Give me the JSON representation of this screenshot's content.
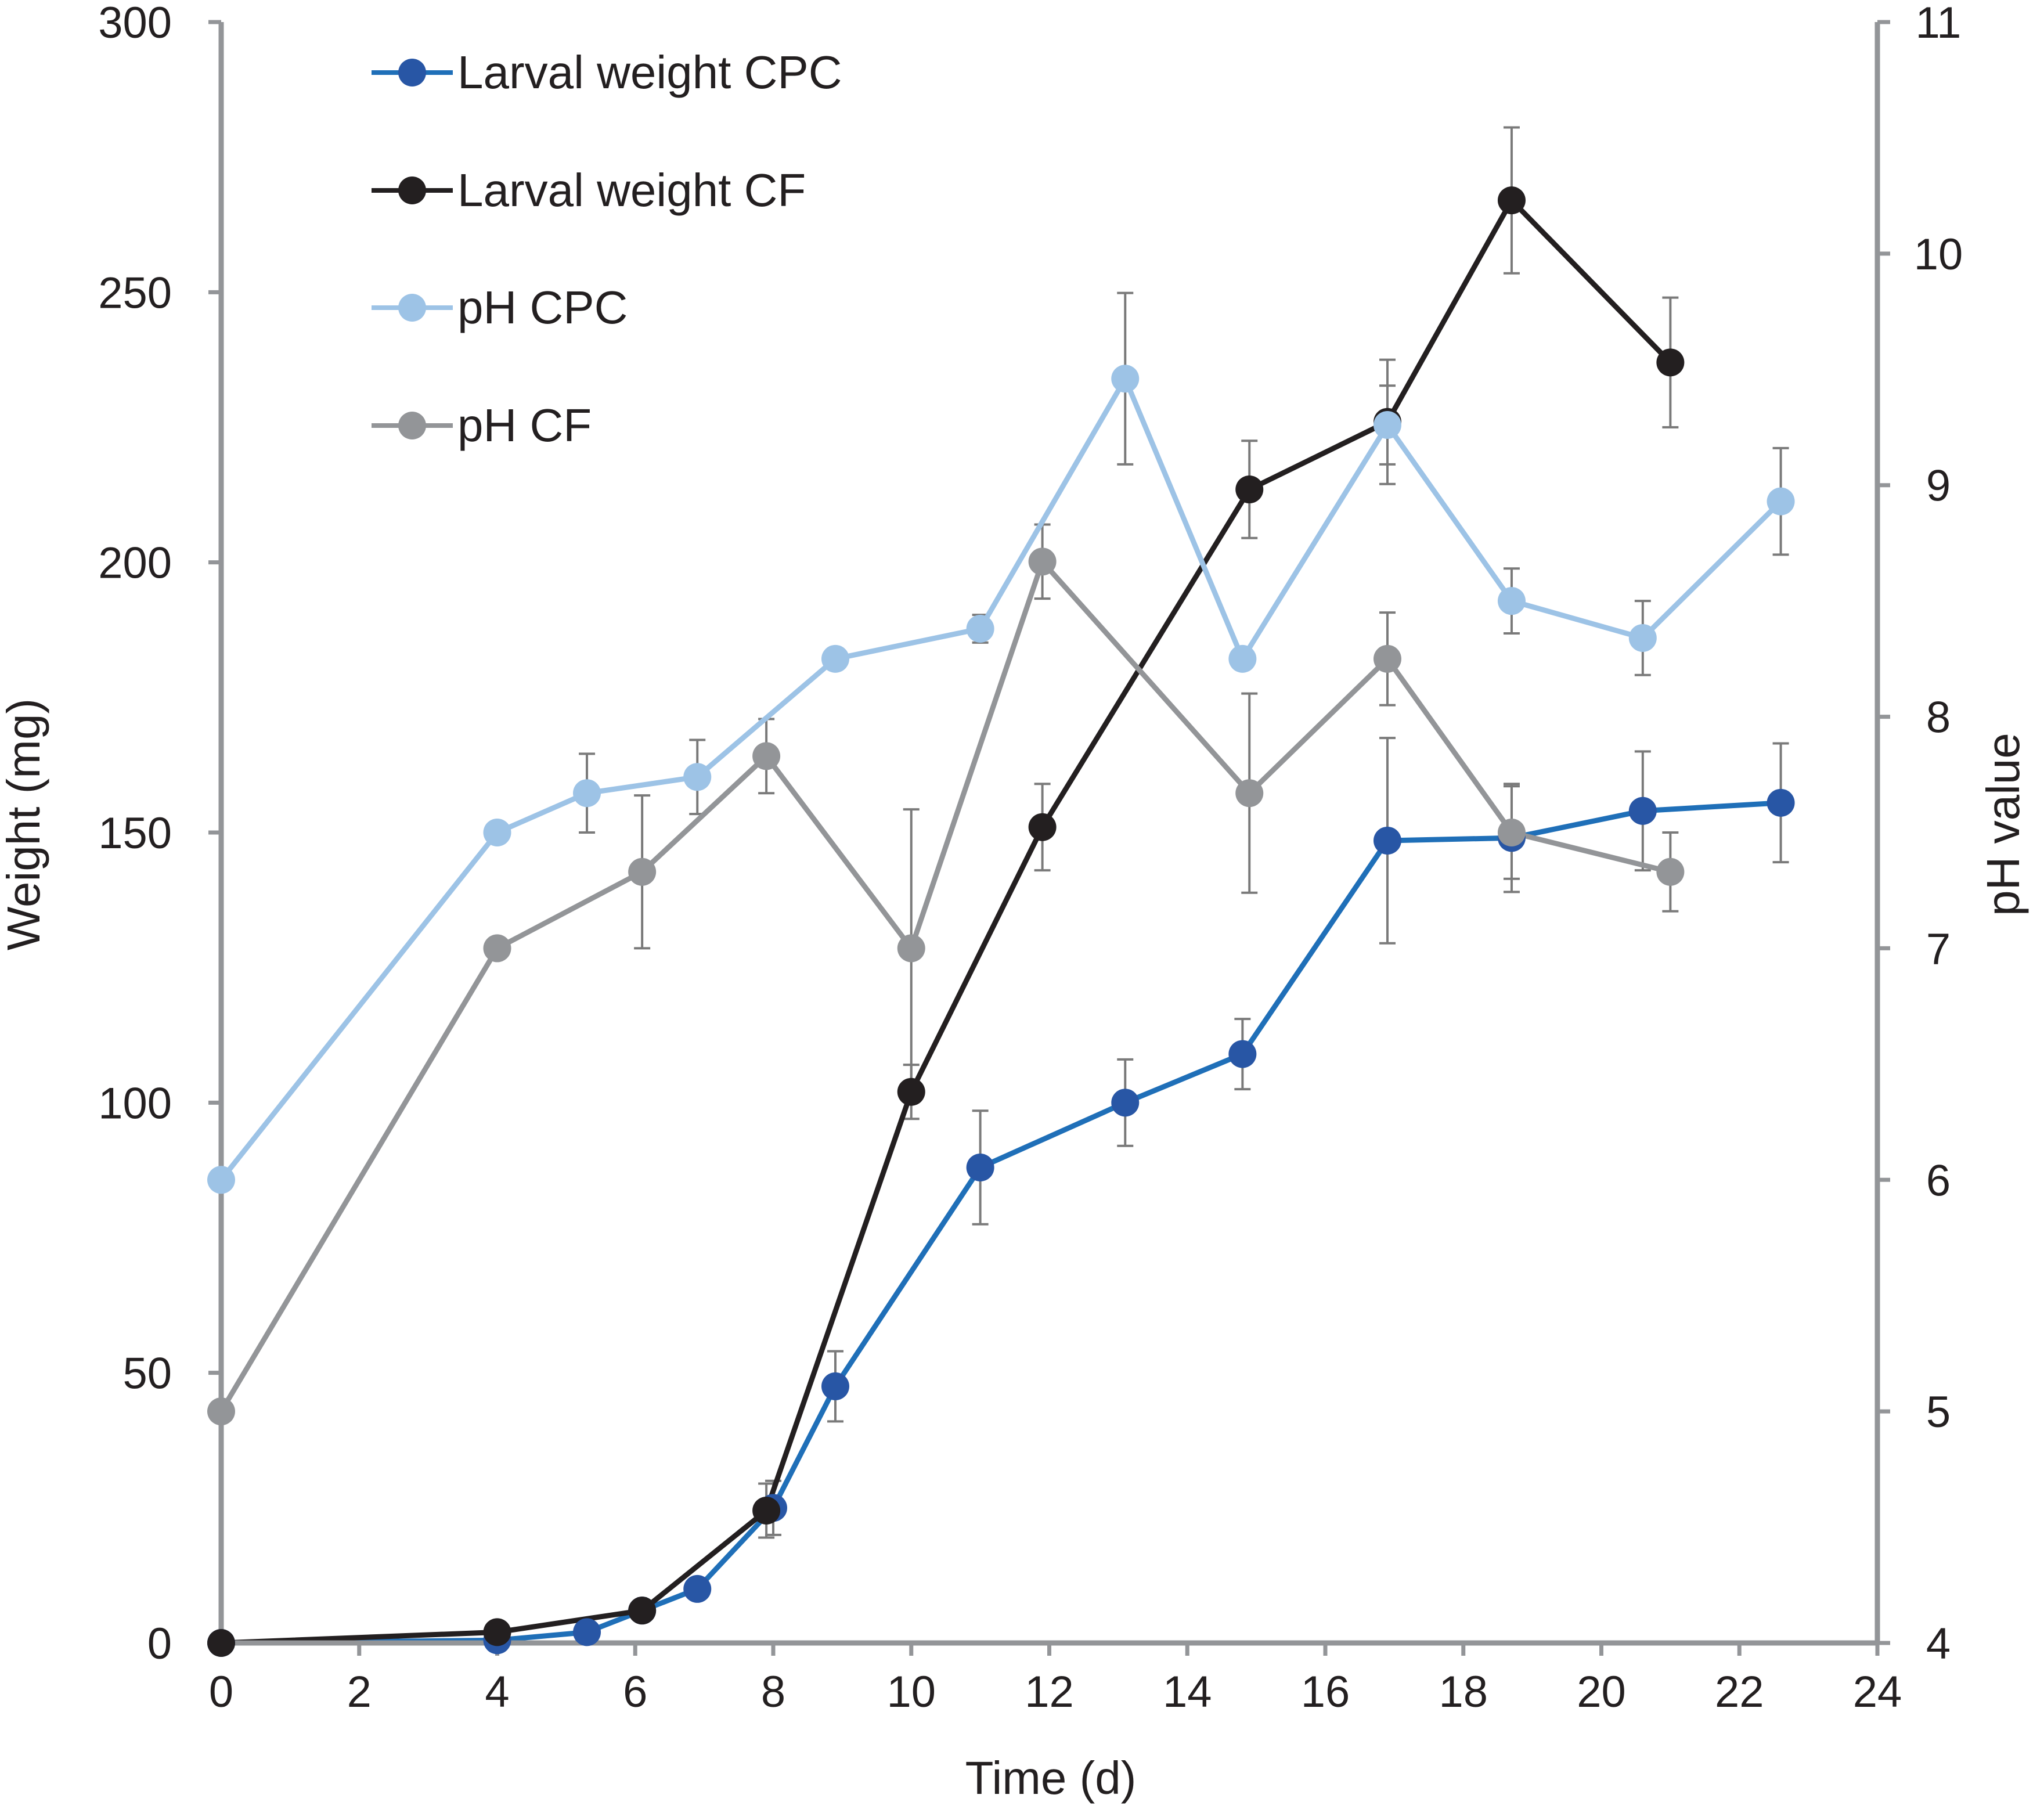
{
  "chart_data": {
    "type": "line",
    "x_axis": {
      "label": "Time (d)",
      "range": [
        0,
        24
      ],
      "ticks": [
        0,
        2,
        4,
        6,
        8,
        10,
        12,
        14,
        16,
        18,
        20,
        22,
        24
      ]
    },
    "y_axis_left": {
      "label": "Weight (mg)",
      "range": [
        0,
        300
      ],
      "ticks": [
        0,
        50,
        100,
        150,
        200,
        250,
        300
      ]
    },
    "y_axis_right": {
      "label": "pH value",
      "range": [
        4,
        11
      ],
      "ticks": [
        4,
        5,
        6,
        7,
        8,
        9,
        10,
        11
      ]
    },
    "grid": false,
    "legend_position": "top-left",
    "series": [
      {
        "name": "Larval weight CPC",
        "axis": "left",
        "color": "#1f6fb8",
        "marker_color": "#2856a5",
        "points": [
          {
            "x": 0,
            "y": 0,
            "err": 0
          },
          {
            "x": 4,
            "y": 0.5,
            "err": 0
          },
          {
            "x": 5.3,
            "y": 2,
            "err": 0
          },
          {
            "x": 6.1,
            "y": 6,
            "err": 0
          },
          {
            "x": 6.9,
            "y": 10,
            "err": 0
          },
          {
            "x": 8,
            "y": 25,
            "err": 5
          },
          {
            "x": 8.9,
            "y": 47.5,
            "err": 6.5
          },
          {
            "x": 11,
            "y": 88,
            "err": 10.5
          },
          {
            "x": 13.1,
            "y": 100,
            "err": 8
          },
          {
            "x": 14.8,
            "y": 109,
            "err": 6.5
          },
          {
            "x": 16.9,
            "y": 148.5,
            "err": 19
          },
          {
            "x": 18.7,
            "y": 149,
            "err": 10
          },
          {
            "x": 20.6,
            "y": 154,
            "err": 11
          },
          {
            "x": 22.6,
            "y": 155.5,
            "err": 11
          }
        ]
      },
      {
        "name": "Larval weight CF",
        "axis": "left",
        "color": "#231f20",
        "marker_color": "#231f20",
        "points": [
          {
            "x": 0,
            "y": 0,
            "err": 0
          },
          {
            "x": 4,
            "y": 2,
            "err": 0
          },
          {
            "x": 6.1,
            "y": 6,
            "err": 0
          },
          {
            "x": 7.9,
            "y": 24.5,
            "err": 5
          },
          {
            "x": 10,
            "y": 102,
            "err": 5
          },
          {
            "x": 11.9,
            "y": 151,
            "err": 8
          },
          {
            "x": 14.9,
            "y": 213.5,
            "err": 9
          },
          {
            "x": 16.9,
            "y": 226,
            "err": 11.5
          },
          {
            "x": 18.7,
            "y": 267,
            "err": 13.5
          },
          {
            "x": 21,
            "y": 237,
            "err": 12
          }
        ]
      },
      {
        "name": "pH CPC",
        "axis": "right",
        "color": "#9dc3e6",
        "marker_color": "#9dc3e6",
        "points": [
          {
            "x": 0,
            "y": 6.0,
            "err": 0
          },
          {
            "x": 4,
            "y": 7.5,
            "err": 0
          },
          {
            "x": 5.3,
            "y": 7.67,
            "err": 0.17
          },
          {
            "x": 6.9,
            "y": 7.74,
            "err": 0.16
          },
          {
            "x": 8.9,
            "y": 8.25,
            "err": 0
          },
          {
            "x": 11,
            "y": 8.38,
            "err": 0.06
          },
          {
            "x": 13.1,
            "y": 9.46,
            "err": 0.37
          },
          {
            "x": 14.8,
            "y": 8.25,
            "err": 0
          },
          {
            "x": 16.9,
            "y": 9.26,
            "err": 0.17
          },
          {
            "x": 18.7,
            "y": 8.5,
            "err": 0.14
          },
          {
            "x": 20.6,
            "y": 8.34,
            "err": 0.16
          },
          {
            "x": 22.6,
            "y": 8.93,
            "err": 0.23
          }
        ]
      },
      {
        "name": "pH CF",
        "axis": "right",
        "color": "#939598",
        "marker_color": "#939598",
        "points": [
          {
            "x": 0,
            "y": 5.0,
            "err": 0
          },
          {
            "x": 4,
            "y": 7.0,
            "err": 0
          },
          {
            "x": 6.1,
            "y": 7.33,
            "err": 0.33
          },
          {
            "x": 7.9,
            "y": 7.83,
            "err": 0.16
          },
          {
            "x": 10,
            "y": 7.0,
            "err": 0.6
          },
          {
            "x": 11.9,
            "y": 8.67,
            "err": 0.16
          },
          {
            "x": 14.9,
            "y": 7.67,
            "err": 0.43
          },
          {
            "x": 16.9,
            "y": 8.25,
            "err": 0.2
          },
          {
            "x": 18.7,
            "y": 7.5,
            "err": 0.2
          },
          {
            "x": 21,
            "y": 7.33,
            "err": 0.17
          }
        ]
      }
    ]
  }
}
